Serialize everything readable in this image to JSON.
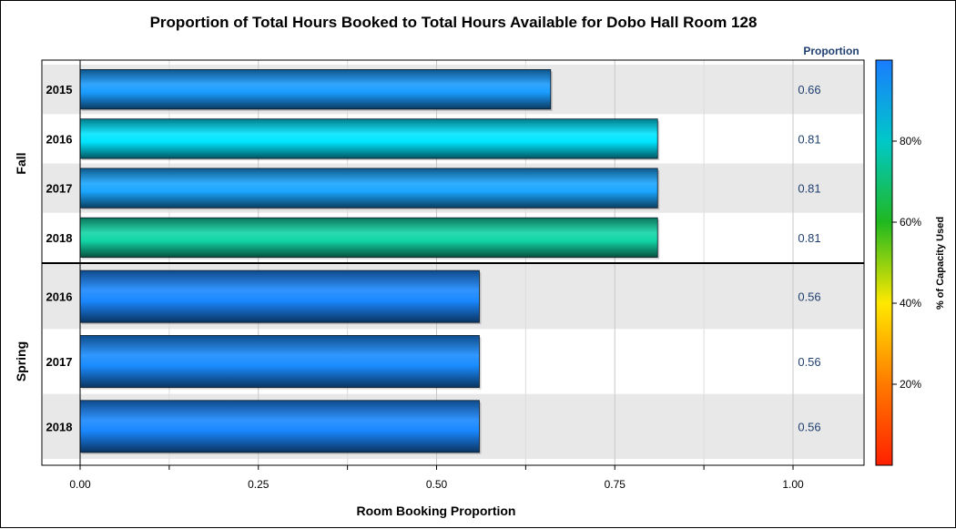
{
  "chart_data": {
    "type": "bar",
    "orientation": "horizontal",
    "title": "Proportion of Total Hours Booked to Total Hours Available for Dobo Hall Room 128",
    "xlabel": "Room Booking Proportion",
    "xlim": [
      0,
      1
    ],
    "x_ticks": [
      "0.00",
      "0.25",
      "0.50",
      "0.75",
      "1.00"
    ],
    "value_column_header": "Proportion",
    "colorbar": {
      "label": "% of Capacity Used",
      "ticks": [
        "20%",
        "40%",
        "60%",
        "80%"
      ],
      "range_percent": [
        0,
        100
      ],
      "colors": [
        "#ff2000",
        "#ff7a00",
        "#ffe800",
        "#20b820",
        "#00c8c8",
        "#1a7cff"
      ]
    },
    "groups": [
      {
        "name": "Fall",
        "bars": [
          {
            "category": "2015",
            "value": 0.66,
            "label": "0.66",
            "color": "#1a9cff"
          },
          {
            "category": "2016",
            "value": 0.81,
            "label": "0.81",
            "color": "#00e5ff"
          },
          {
            "category": "2017",
            "value": 0.81,
            "label": "0.81",
            "color": "#1aa6ff"
          },
          {
            "category": "2018",
            "value": 0.81,
            "label": "0.81",
            "color": "#12d6a6"
          }
        ]
      },
      {
        "name": "Spring",
        "bars": [
          {
            "category": "2016",
            "value": 0.56,
            "label": "0.56",
            "color": "#1a88ff"
          },
          {
            "category": "2017",
            "value": 0.56,
            "label": "0.56",
            "color": "#1a8cff"
          },
          {
            "category": "2018",
            "value": 0.56,
            "label": "0.56",
            "color": "#1a88ff"
          }
        ]
      }
    ],
    "grid": true,
    "alternating_row_bands": true
  }
}
